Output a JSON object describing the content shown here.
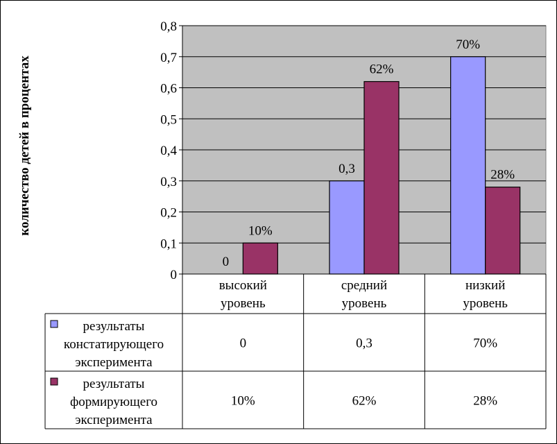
{
  "chart_data": {
    "type": "bar",
    "title": "",
    "ylabel": "количество детей в процентах",
    "xlabel": "",
    "ylim": [
      0,
      0.8
    ],
    "yticks": [
      "0",
      "0,1",
      "0,2",
      "0,3",
      "0,4",
      "0,5",
      "0,6",
      "0,7",
      "0,8"
    ],
    "grid": true,
    "categories": [
      [
        "высокий",
        "уровень"
      ],
      [
        "средний",
        "уровень"
      ],
      [
        "низкий",
        "уровень"
      ]
    ],
    "series": [
      {
        "name": [
          "результаты",
          "констатирующего",
          "эксперимента"
        ],
        "color": "#9999ff",
        "values": [
          0,
          0.3,
          0.7
        ],
        "labels": [
          "0",
          "0,3",
          "70%"
        ]
      },
      {
        "name": [
          "результаты",
          "формирующего",
          "эксперимента"
        ],
        "color": "#993366",
        "values": [
          0.1,
          0.62,
          0.28
        ],
        "labels": [
          "10%",
          "62%",
          "28%"
        ]
      }
    ],
    "data_table": true,
    "plot_background": "#c0c0c0"
  }
}
